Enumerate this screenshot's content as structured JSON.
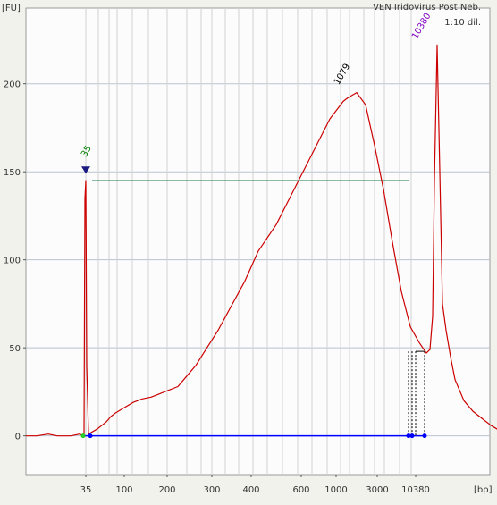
{
  "chart_data": {
    "type": "line",
    "title": "VEN Iridovirus Post Neb.",
    "subtitle": "1:10 dil.",
    "ylabel": "[FU]",
    "xlabel": "[bp]",
    "ylim": [
      -22,
      243
    ],
    "yticks": [
      0,
      50,
      100,
      150,
      200
    ],
    "xticks": [
      "35",
      "100",
      "200",
      "300",
      "400",
      "600",
      "1000",
      "3000",
      "10380"
    ],
    "grid": true,
    "peaks": [
      {
        "label": "35",
        "color": "#008000",
        "size_bp": 35,
        "fu": 150
      },
      {
        "label": "1079",
        "color": "#000000",
        "size_bp": 1079,
        "fu": 195
      },
      {
        "label": "10380",
        "color": "#8000c0",
        "size_bp": 10380,
        "fu": 222
      }
    ],
    "baseline": {
      "y": 0,
      "color": "#0000ff"
    },
    "region_line": {
      "y": 145,
      "color": "#1a7a4a"
    },
    "series": [
      {
        "color": "#cc0000",
        "x": [
          0,
          12,
          25,
          35,
          50,
          60,
          65,
          66,
          67,
          68,
          70,
          80,
          90,
          95,
          100,
          110,
          120,
          130,
          140,
          150,
          160,
          170,
          180,
          190,
          200,
          215,
          230,
          245,
          260,
          280,
          300,
          320,
          340,
          355,
          360,
          370,
          380,
          390,
          400,
          410,
          420,
          430,
          440,
          448,
          452,
          455,
          457,
          460,
          463,
          466,
          470,
          475,
          480,
          490,
          500,
          510,
          520,
          530,
          540
        ],
        "y": [
          0,
          0,
          1,
          0,
          0,
          1,
          0,
          135,
          145,
          40,
          1,
          4,
          8,
          11,
          13,
          16,
          19,
          21,
          22,
          24,
          26,
          28,
          34,
          40,
          48,
          60,
          74,
          88,
          105,
          120,
          140,
          160,
          180,
          190,
          192,
          195,
          188,
          165,
          140,
          110,
          82,
          62,
          53,
          47,
          49,
          68,
          145,
          222,
          150,
          75,
          60,
          45,
          32,
          20,
          14,
          10,
          6,
          3,
          1
        ]
      }
    ]
  }
}
